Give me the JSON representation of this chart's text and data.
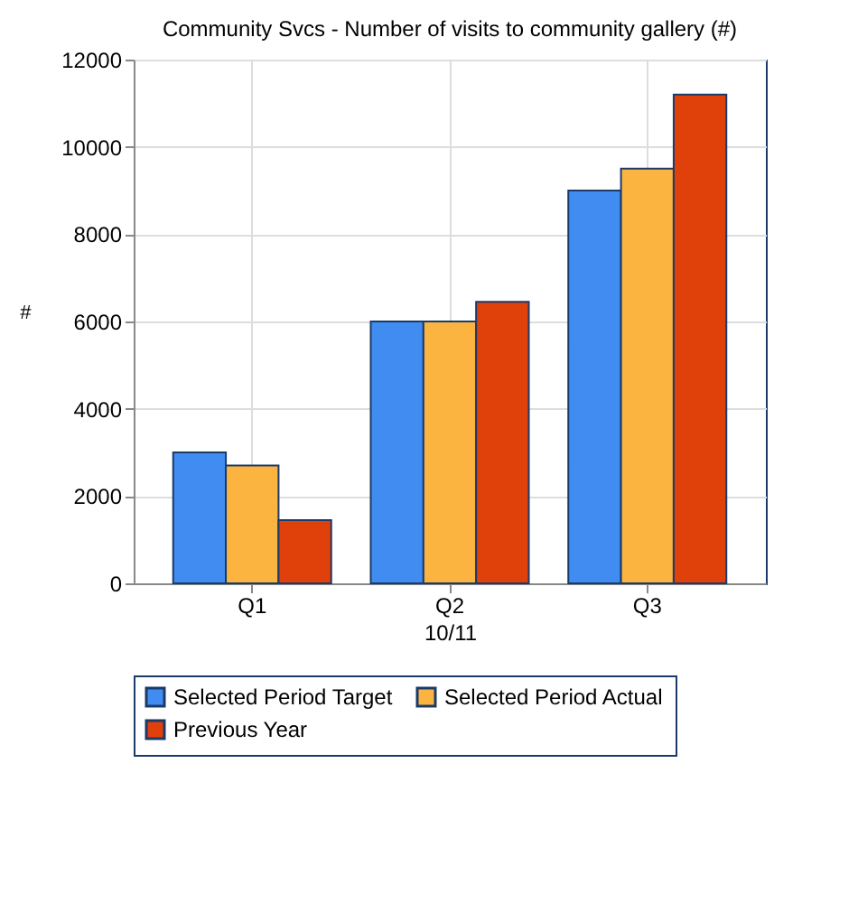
{
  "chart_data": {
    "type": "bar",
    "title": "Community Svcs - Number of visits to community gallery (#)",
    "xlabel": "10/11",
    "ylabel": "#",
    "categories": [
      "Q1",
      "Q2",
      "Q3"
    ],
    "series": [
      {
        "name": "Selected Period Target",
        "color": "#418cf0",
        "values": [
          3000,
          6000,
          9000
        ]
      },
      {
        "name": "Selected Period Actual",
        "color": "#fcb441",
        "values": [
          2700,
          6000,
          9500
        ]
      },
      {
        "name": "Previous Year",
        "color": "#e0400a",
        "values": [
          1450,
          6450,
          11200
        ]
      }
    ],
    "ylim": [
      0,
      12000
    ],
    "yticks": [
      0,
      2000,
      4000,
      6000,
      8000,
      10000,
      12000
    ],
    "grid": true,
    "legend": "bottom"
  }
}
